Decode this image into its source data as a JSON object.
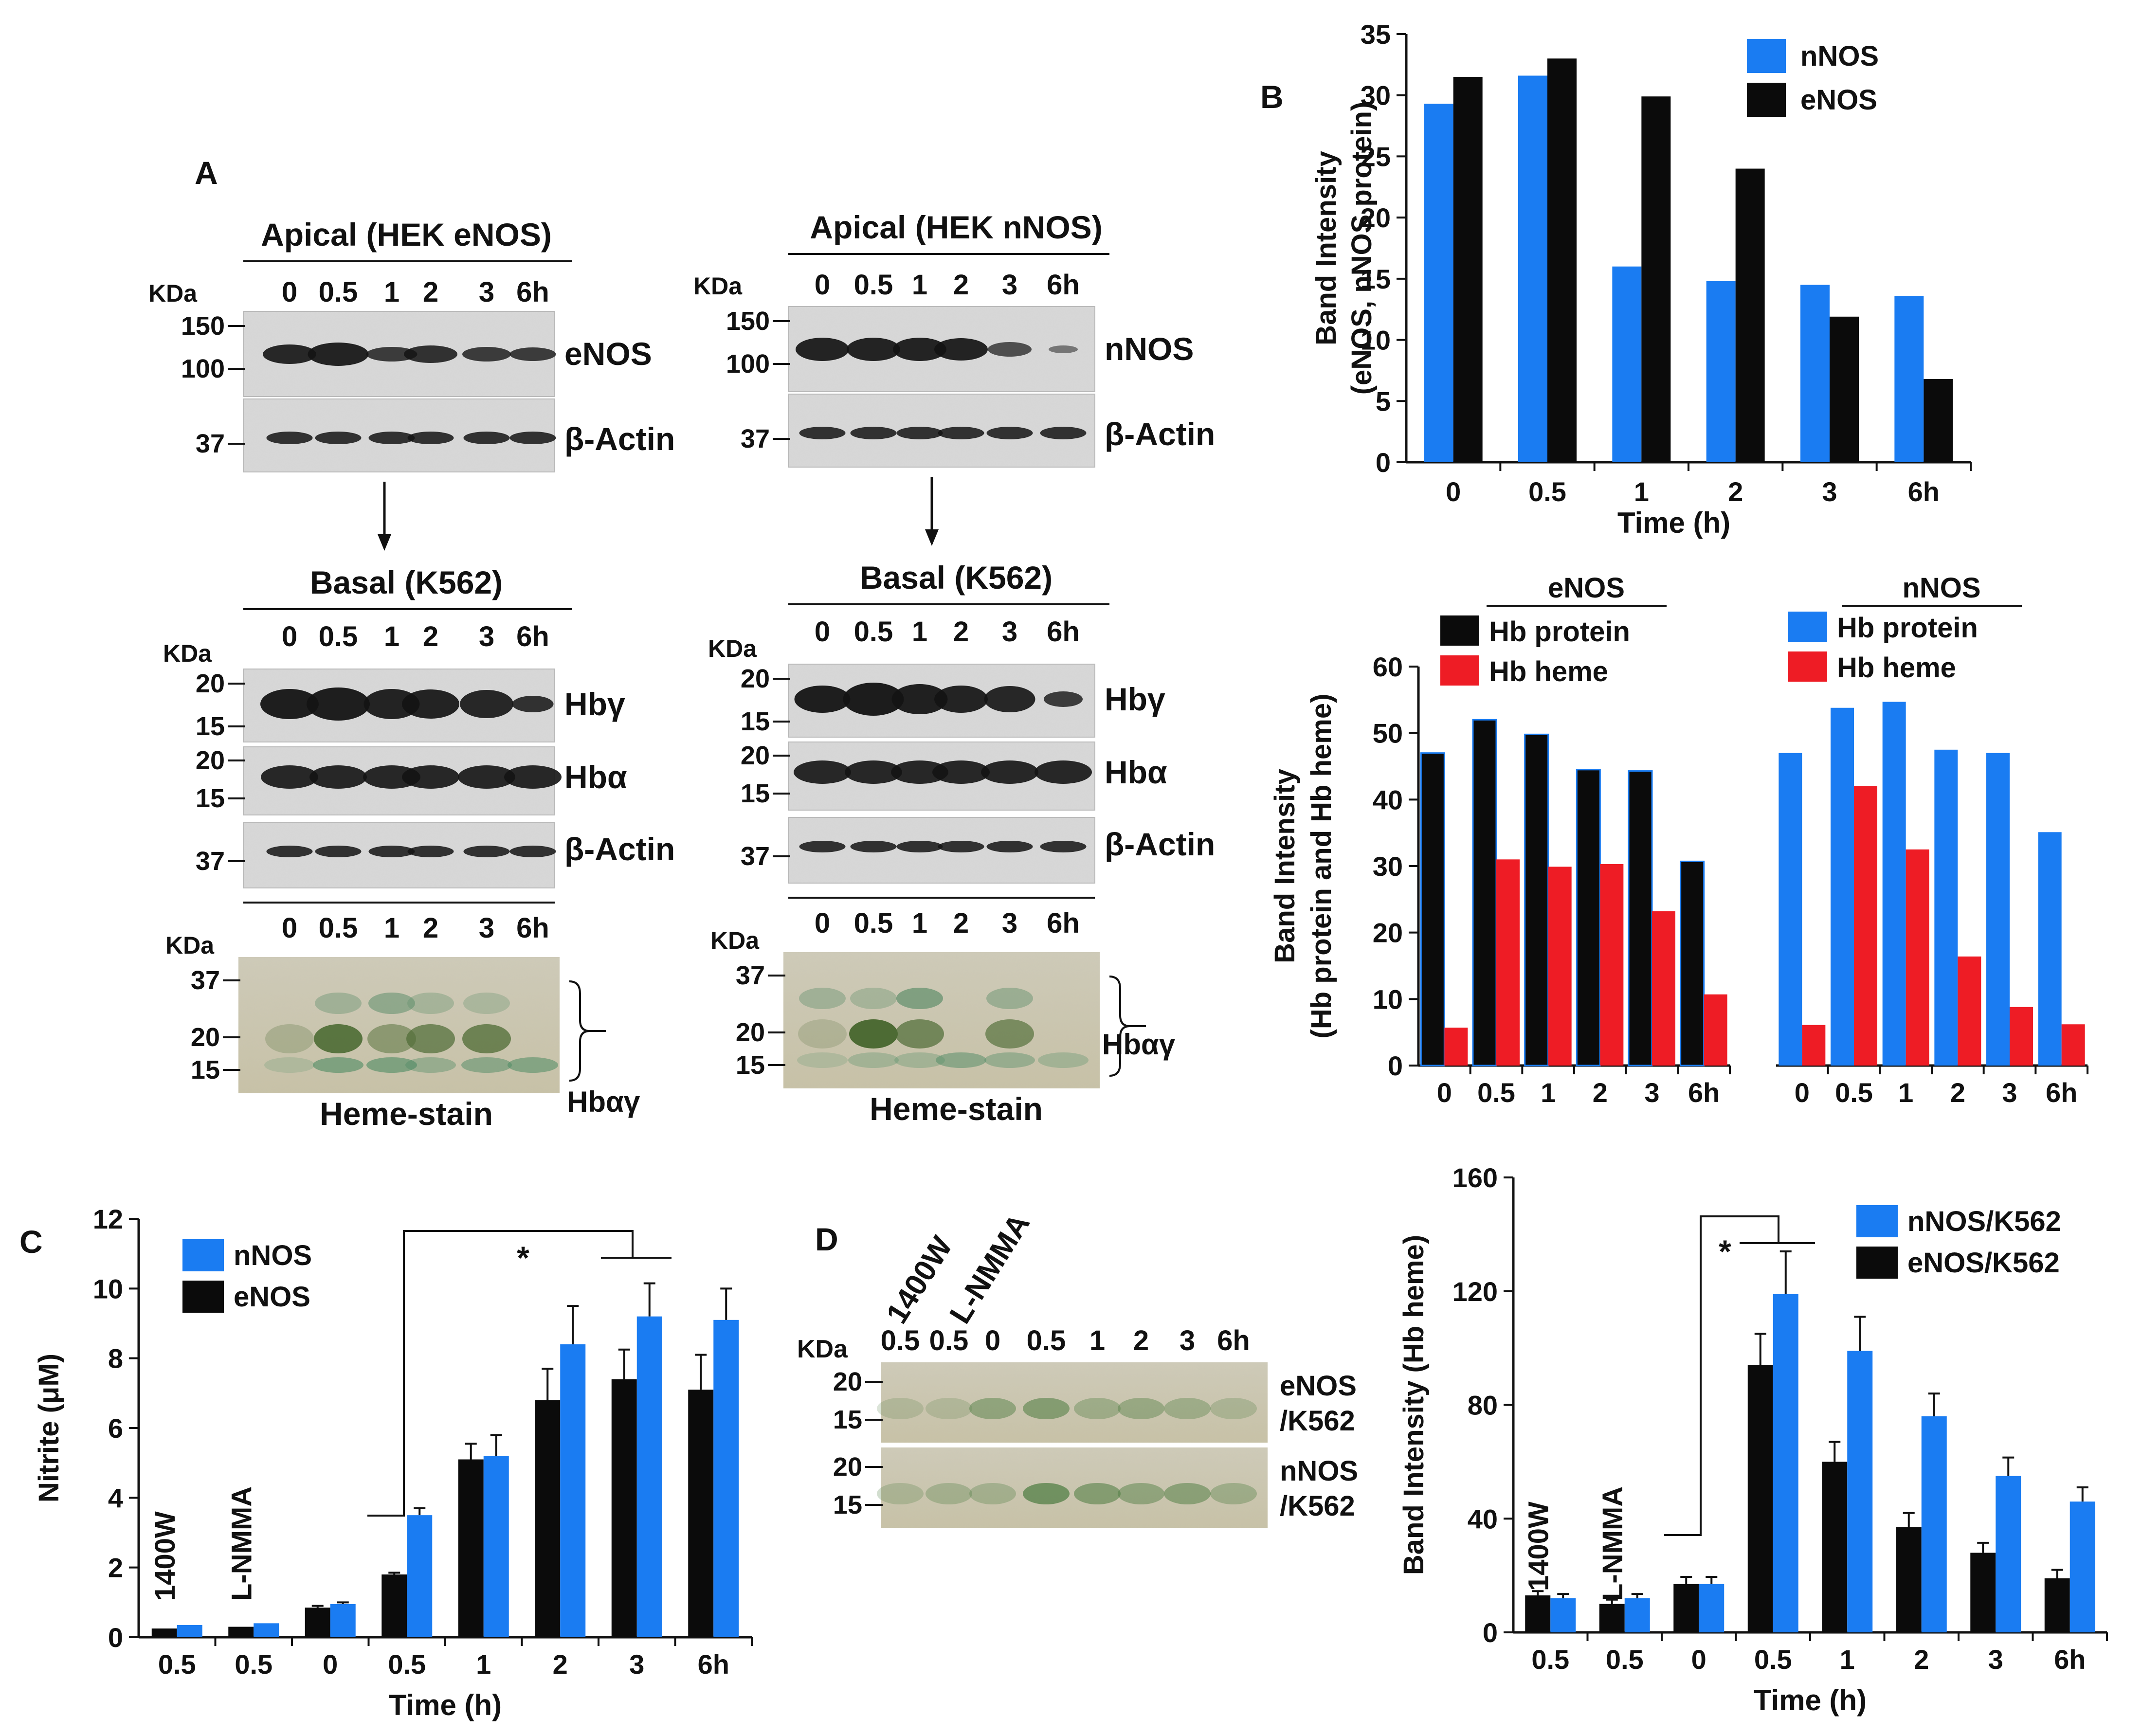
{
  "panel_labels": {
    "a": "A",
    "b": "B",
    "c": "C",
    "d": "D"
  },
  "colors": {
    "blue": "#1a7cf2",
    "black": "#0b0b0b",
    "red": "#ee1c25",
    "axis": "#111111"
  },
  "blots": {
    "kda": "KDa",
    "heme_stain": "Heme-stain",
    "hb_alpha_gamma": "Hbαγ",
    "left": {
      "title": "Apical (HEK eNOS)",
      "lanes": [
        "0",
        "0.5",
        "1",
        "2",
        "3",
        "6h"
      ],
      "protein": "eNOS",
      "actin": "β-Actin",
      "mw_top": [
        "150",
        "100"
      ],
      "mw_actin": "37",
      "basal_title": "Basal (K562)",
      "basal_lanes": [
        "0",
        "0.5",
        "1",
        "2",
        "3",
        "6h"
      ],
      "hb_gamma": "Hbγ",
      "hb_alpha": "Hbα",
      "mw_hb": [
        "20",
        "15"
      ],
      "heme_lanes": [
        "0",
        "0.5",
        "1",
        "2",
        "3",
        "6h"
      ],
      "mw_heme": [
        "37",
        "20",
        "15"
      ]
    },
    "right": {
      "title": "Apical (HEK nNOS)",
      "lanes": [
        "0",
        "0.5",
        "1",
        "2",
        "3",
        "6h"
      ],
      "protein": "nNOS",
      "actin": "β-Actin",
      "mw_top": [
        "150",
        "100"
      ],
      "mw_actin": "37",
      "basal_title": "Basal (K562)",
      "basal_lanes": [
        "0",
        "0.5",
        "1",
        "2",
        "3",
        "6h"
      ],
      "hb_gamma": "Hbγ",
      "hb_alpha": "Hbα",
      "mw_hb": [
        "20",
        "15"
      ],
      "heme_lanes": [
        "0",
        "0.5",
        "1",
        "2",
        "3",
        "6h"
      ],
      "mw_heme": [
        "37",
        "20",
        "15"
      ]
    },
    "d": {
      "inhibitors": [
        "1400W",
        "L-NMMA"
      ],
      "lanes": [
        "0.5",
        "0.5",
        "0",
        "0.5",
        "1",
        "2",
        "3",
        "6h"
      ],
      "mw": [
        "20",
        "15"
      ],
      "row1_label": [
        "eNOS",
        "/K562"
      ],
      "row2_label": [
        "nNOS",
        "/K562"
      ]
    }
  },
  "chart_data": [
    {
      "id": "B-top",
      "type": "bar",
      "title": "",
      "xlabel": "Time (h)",
      "ylabel": [
        "Band Intensity",
        "(eNOS, nNOS protein)"
      ],
      "categories": [
        "0",
        "0.5",
        "1",
        "2",
        "3",
        "6h"
      ],
      "ylim": [
        0,
        35
      ],
      "yticks": [
        "0",
        "5",
        "10",
        "15",
        "20",
        "25",
        "30",
        "35"
      ],
      "series": [
        {
          "name": "nNOS",
          "color": "#1a7cf2",
          "values": [
            29.3,
            31.6,
            16.0,
            14.8,
            14.5,
            13.6
          ]
        },
        {
          "name": "eNOS",
          "color": "#0b0b0b",
          "values": [
            31.5,
            33.0,
            29.9,
            24.0,
            11.9,
            6.8
          ]
        }
      ]
    },
    {
      "id": "B-bottom",
      "type": "bar",
      "ylabel": [
        "Band Intensity",
        "(Hb protein and Hb heme)"
      ],
      "ylim": [
        0,
        60
      ],
      "yticks": [
        "0",
        "10",
        "20",
        "30",
        "40",
        "50",
        "60"
      ],
      "groups": [
        {
          "title": "eNOS",
          "categories": [
            "0",
            "0.5",
            "1",
            "2",
            "3",
            "6h"
          ],
          "series": [
            {
              "name": "Hb protein",
              "color": "#0b0b0b",
              "values": [
                47.0,
                52.0,
                49.8,
                44.5,
                44.3,
                30.7
              ]
            },
            {
              "name": "Hb heme",
              "color": "#ee1c25",
              "values": [
                5.7,
                31.0,
                29.9,
                30.3,
                23.2,
                10.7
              ]
            }
          ]
        },
        {
          "title": "nNOS",
          "categories": [
            "0",
            "0.5",
            "1",
            "2",
            "3",
            "6h"
          ],
          "series": [
            {
              "name": "Hb protein",
              "color": "#1a7cf2",
              "values": [
                47.0,
                53.8,
                54.7,
                47.5,
                47.0,
                35.1
              ]
            },
            {
              "name": "Hb heme",
              "color": "#ee1c25",
              "values": [
                6.1,
                42.0,
                32.5,
                16.4,
                8.8,
                6.2
              ]
            }
          ]
        }
      ]
    },
    {
      "id": "C",
      "type": "bar",
      "xlabel": "Time (h)",
      "ylabel": "Nitrite  (μM)",
      "categories": [
        "0.5",
        "0.5",
        "0",
        "0.5",
        "1",
        "2",
        "3",
        "6h"
      ],
      "inhibitor_labels": [
        "1400W",
        "L-NMMA"
      ],
      "ylim": [
        0,
        12
      ],
      "yticks": [
        "0",
        "2",
        "4",
        "6",
        "8",
        "10",
        "12"
      ],
      "series": [
        {
          "name": "eNOS",
          "color": "#0b0b0b",
          "values": [
            0.25,
            0.3,
            0.85,
            1.8,
            5.1,
            6.8,
            7.4,
            7.1
          ],
          "errors": [
            0,
            0,
            0.05,
            0.05,
            0.45,
            0.9,
            0.85,
            1.0
          ]
        },
        {
          "name": "nNOS",
          "color": "#1a7cf2",
          "values": [
            0.35,
            0.4,
            0.95,
            3.5,
            5.2,
            8.4,
            9.2,
            9.1
          ],
          "errors": [
            0,
            0,
            0.05,
            0.2,
            0.6,
            1.1,
            0.95,
            0.9
          ]
        }
      ],
      "significance": "*"
    },
    {
      "id": "D-chart",
      "type": "bar",
      "xlabel": "Time (h)",
      "ylabel": "Band Intensity  (Hb heme)",
      "categories": [
        "0.5",
        "0.5",
        "0",
        "0.5",
        "1",
        "2",
        "3",
        "6h"
      ],
      "inhibitor_labels": [
        "1400W",
        "L-NMMA"
      ],
      "ylim": [
        0,
        160
      ],
      "yticks": [
        "0",
        "40",
        "80",
        "120",
        "160"
      ],
      "series": [
        {
          "name": "eNOS/K562",
          "color": "#0b0b0b",
          "values": [
            13,
            10,
            17,
            94,
            60,
            37,
            28,
            19
          ],
          "errors": [
            1.5,
            1.5,
            2.5,
            11,
            7,
            5,
            3.5,
            3
          ]
        },
        {
          "name": "nNOS/K562",
          "color": "#1a7cf2",
          "values": [
            12,
            12,
            17,
            119,
            99,
            76,
            55,
            46
          ],
          "errors": [
            1.5,
            1.5,
            2.5,
            15,
            12,
            8,
            6.5,
            5
          ]
        }
      ],
      "significance": "*"
    }
  ]
}
